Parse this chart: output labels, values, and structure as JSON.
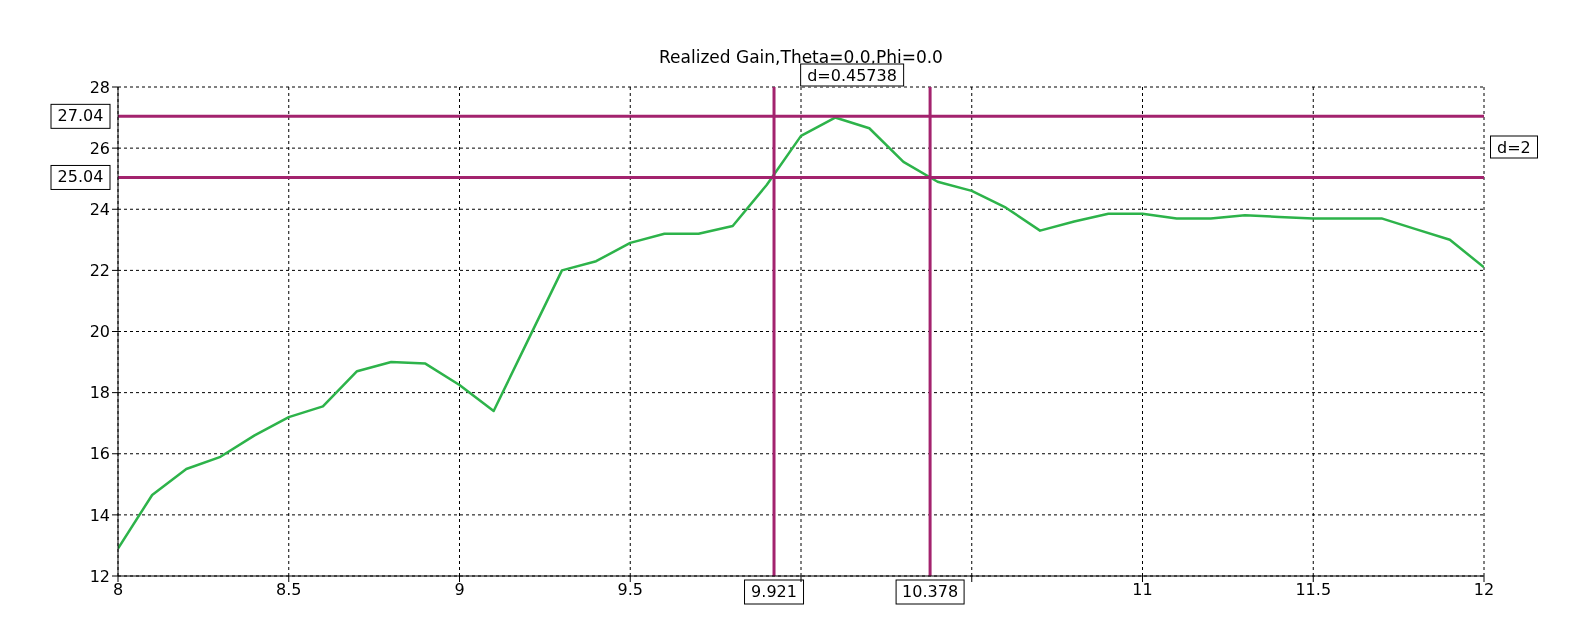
{
  "chart_data": {
    "type": "line",
    "title": "Realized Gain,Theta=0.0,Phi=0.0",
    "x": [
      8,
      8.1,
      8.2,
      8.3,
      8.4,
      8.5,
      8.6,
      8.7,
      8.8,
      8.9,
      9,
      9.1,
      9.2,
      9.3,
      9.4,
      9.5,
      9.6,
      9.7,
      9.8,
      9.9,
      10,
      10.1,
      10.2,
      10.3,
      10.4,
      10.5,
      10.6,
      10.7,
      10.8,
      10.9,
      11,
      11.1,
      11.2,
      11.3,
      11.4,
      11.5,
      11.6,
      11.7,
      11.8,
      11.9,
      12
    ],
    "series": [
      {
        "color": "#2db34a",
        "values": [
          12.9,
          14.65,
          15.5,
          15.9,
          16.6,
          17.2,
          17.55,
          18.7,
          19,
          18.95,
          18.25,
          17.4,
          19.7,
          22,
          22.3,
          22.9,
          23.2,
          23.2,
          23.45,
          24.8,
          26.4,
          27,
          26.65,
          25.55,
          24.9,
          24.6,
          24.05,
          23.3,
          23.6,
          23.85,
          23.85,
          23.7,
          23.7,
          23.8,
          23.75,
          23.7,
          23.7,
          23.7,
          23.35,
          23,
          22.1
        ]
      }
    ],
    "xlim": [
      8,
      12
    ],
    "xticks": [
      8,
      8.5,
      9,
      9.5,
      {
        "value": 10,
        "label": null
      },
      {
        "value": 10.5,
        "label": null
      },
      11,
      11.5,
      12
    ],
    "ylim": [
      12,
      28
    ],
    "yticks": [
      12,
      14,
      16,
      18,
      20,
      22,
      24,
      26,
      28
    ],
    "grid": true,
    "marker": "none",
    "line_style": "solid",
    "ref_lines": [
      {
        "axis": "y",
        "value": 27.04,
        "label": "27.04",
        "color": "#a3236e"
      },
      {
        "axis": "y",
        "value": 25.04,
        "label": "25.04",
        "color": "#a3236e"
      },
      {
        "axis": "x",
        "value": 9.921,
        "label": "9.921",
        "color": "#a3236e"
      },
      {
        "axis": "x",
        "value": 10.378,
        "label": "10.378",
        "color": "#a3236e"
      }
    ],
    "annotations": [
      "d=0.45738",
      "d=2"
    ]
  }
}
